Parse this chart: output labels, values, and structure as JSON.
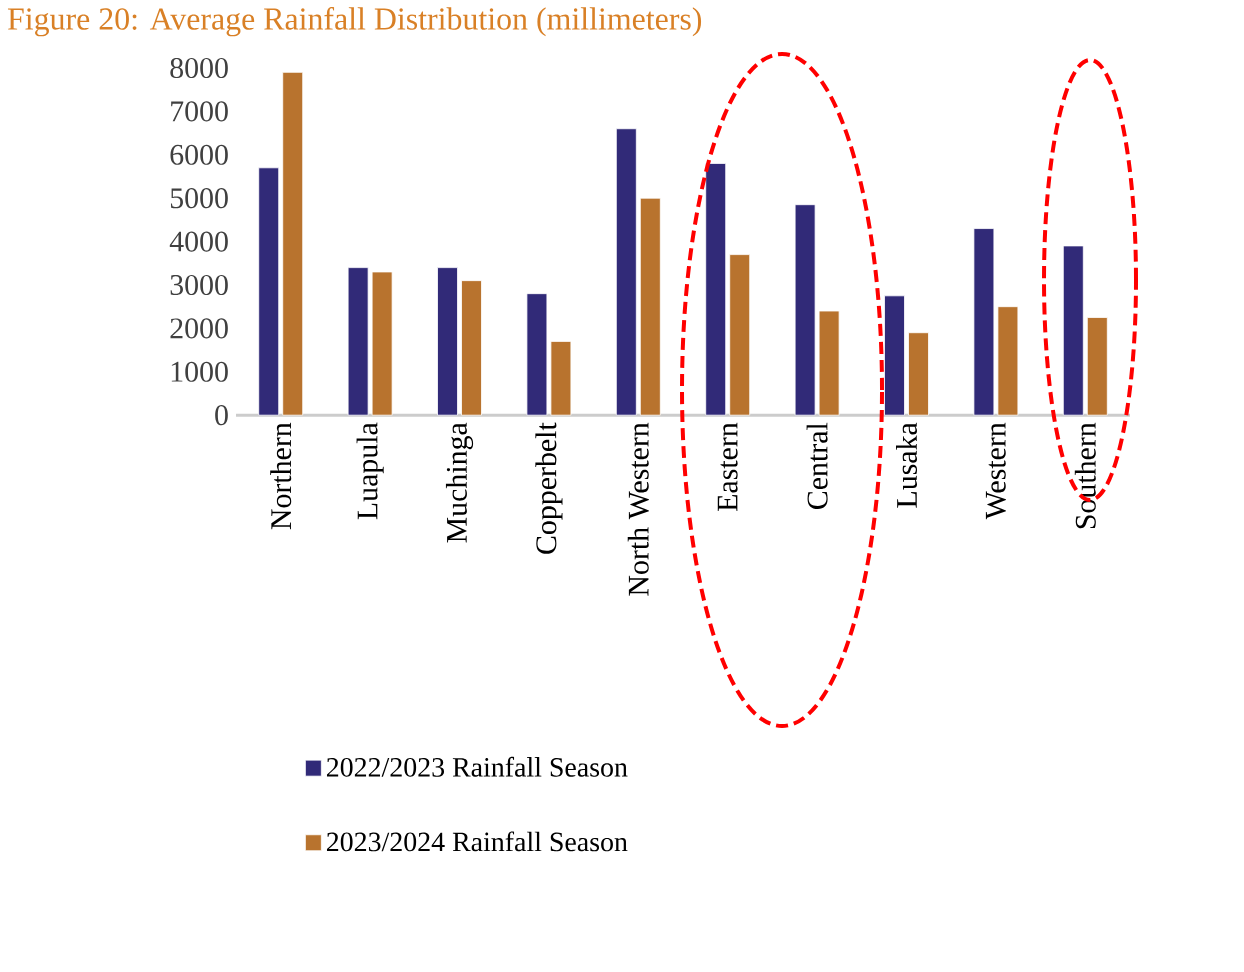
{
  "chart_data": {
    "type": "bar",
    "title": "Figure 20: Average Rainfall Distribution (millimeters)",
    "categories": [
      "Northern",
      "Luapula",
      "Muchinga",
      "Copperbelt",
      "North Western",
      "Eastern",
      "Central",
      "Lusaka",
      "Western",
      "Southern"
    ],
    "series": [
      {
        "name": "2022/2023 Rainfall Season",
        "color": "#312a78",
        "values": [
          5700,
          3400,
          3400,
          2800,
          6600,
          5800,
          4850,
          2750,
          4300,
          3900
        ]
      },
      {
        "name": "2023/2024 Rainfall Season",
        "color": "#b8732e",
        "values": [
          7900,
          3300,
          3100,
          1700,
          5000,
          3700,
          2400,
          1900,
          2500,
          2250
        ]
      }
    ],
    "ylim": [
      0,
      8000
    ],
    "yticks": [
      0,
      1000,
      2000,
      3000,
      4000,
      5000,
      6000,
      7000,
      8000
    ],
    "grid": false,
    "legend": "bottom"
  }
}
